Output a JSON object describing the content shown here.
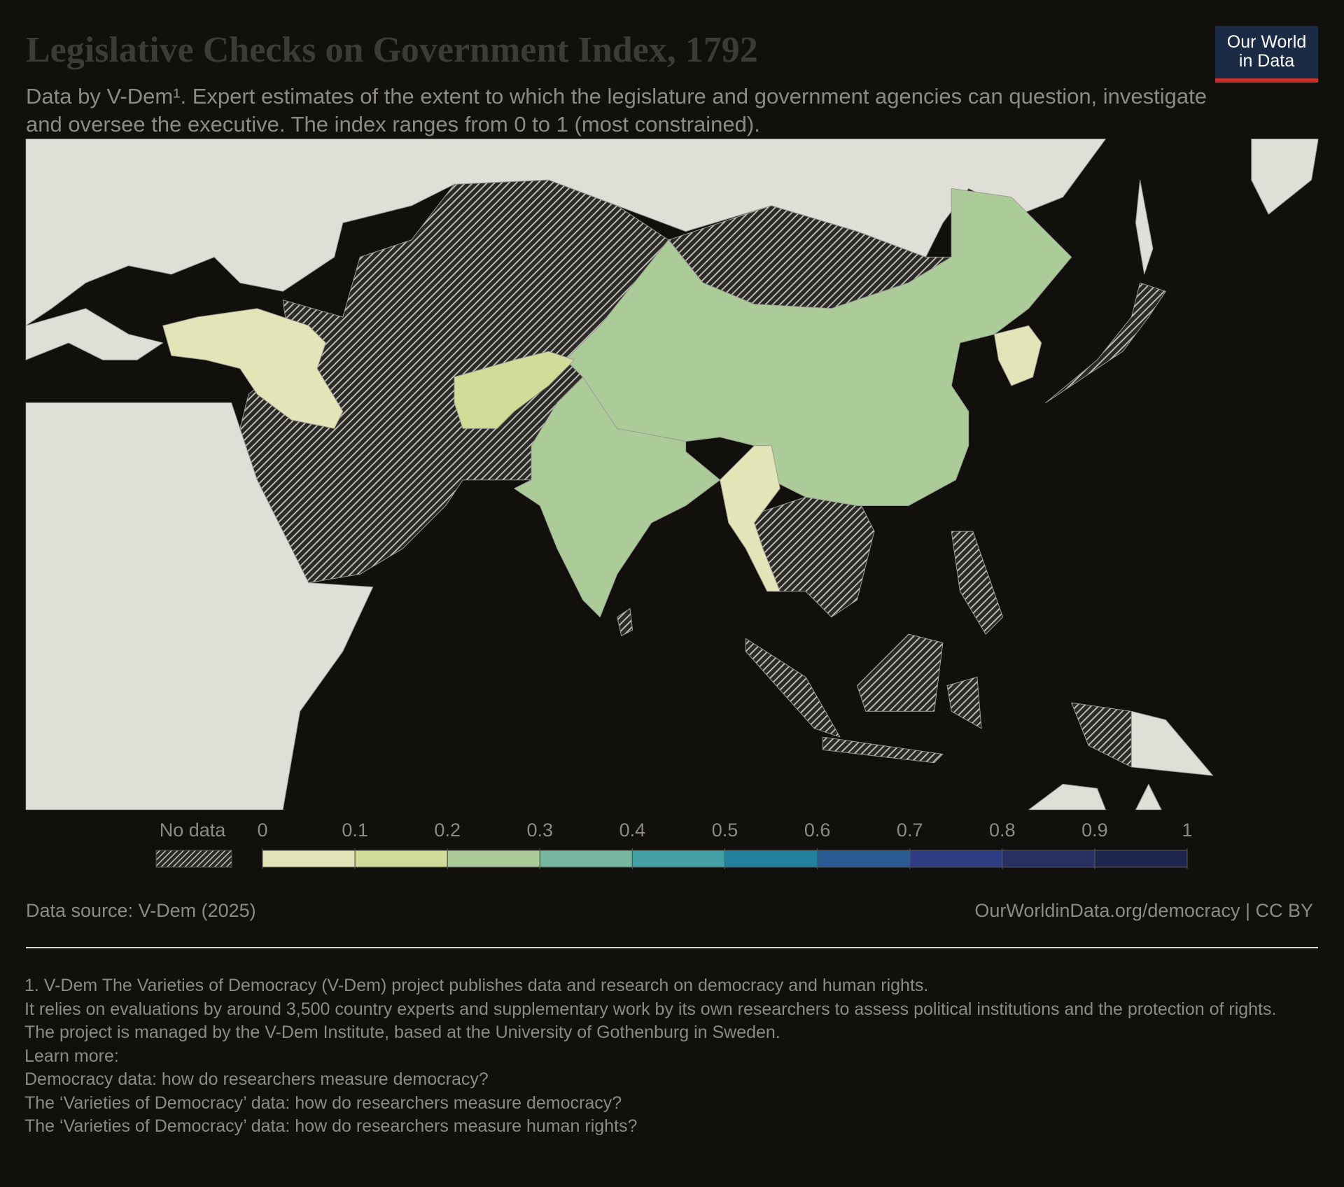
{
  "chart_data": {
    "type": "choropleth",
    "title": "Legislative Checks on Government Index, 1792",
    "subtitle": "Data by V-Dem¹. Expert estimates of the extent to which the legislature and government agencies can question, investigate and oversee the executive. The index ranges from 0 to 1 (most constrained).",
    "no_data_label": "No data",
    "legend": {
      "bins": [
        0,
        0.1,
        0.2,
        0.3,
        0.4,
        0.5,
        0.6,
        0.7,
        0.8,
        0.9,
        1
      ],
      "colors": [
        "#e3e5b8",
        "#d2db97",
        "#abcc98",
        "#79b8a0",
        "#44a0a5",
        "#23809f",
        "#2a5b92",
        "#2e3c83",
        "#272f63",
        "#1e2650"
      ]
    },
    "regions": {
      "values": [
        0.25,
        0.25,
        0.15,
        0.05,
        0.05,
        0.05
      ]
    },
    "source": "Data source: V-Dem (2025)",
    "url": "OurWorldinData.org/democracy | CC BY"
  },
  "logo": [
    "Our World",
    "in Data"
  ],
  "footnotes": [
    "1. V-Dem The Varieties of Democracy (V-Dem) project publishes data and research on democracy and human rights.",
    "It relies on evaluations by around 3,500 country experts and supplementary work by its own researchers to assess political institutions and the protection of rights.",
    "The project is managed by the V-Dem Institute, based at the University of Gothenburg in Sweden.",
    "Learn more:",
    "Democracy data: how do researchers measure democracy?",
    "The ‘Varieties of Democracy’ data: how do researchers measure democracy?",
    "The ‘Varieties of Democracy’ data: how do researchers measure human rights?"
  ]
}
